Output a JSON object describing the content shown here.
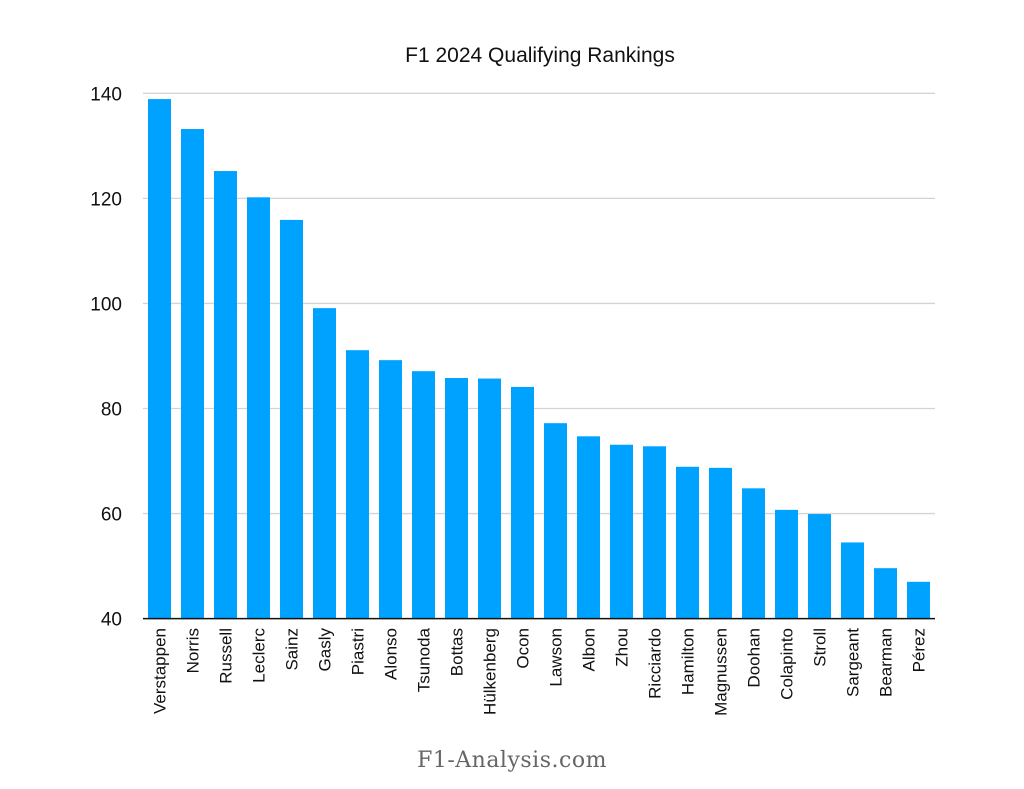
{
  "chart_data": {
    "type": "bar",
    "title": "F1 2024 Qualifying Rankings",
    "xlabel": "",
    "ylabel": "",
    "ylim": [
      40,
      140
    ],
    "yticks": [
      40,
      60,
      80,
      100,
      120,
      140
    ],
    "grid": true,
    "bar_color": "#00a2ff",
    "categories": [
      "Verstappen",
      "Norris",
      "Russell",
      "Leclerc",
      "Sainz",
      "Gasly",
      "Piastri",
      "Alonso",
      "Tsunoda",
      "Bottas",
      "Hülkenberg",
      "Ocon",
      "Lawson",
      "Albon",
      "Zhou",
      "Ricciardo",
      "Hamilton",
      "Magnussen",
      "Doohan",
      "Colapinto",
      "Stroll",
      "Sargeant",
      "Bearman",
      "Pérez"
    ],
    "values": [
      138.9,
      133.2,
      125.2,
      120.2,
      115.9,
      99.1,
      91.1,
      89.2,
      87.1,
      85.8,
      85.7,
      84.1,
      77.2,
      74.7,
      73.1,
      72.8,
      68.9,
      68.7,
      64.8,
      60.7,
      59.9,
      54.5,
      49.6,
      47.0
    ]
  },
  "watermark": "F1-Analysis.com"
}
